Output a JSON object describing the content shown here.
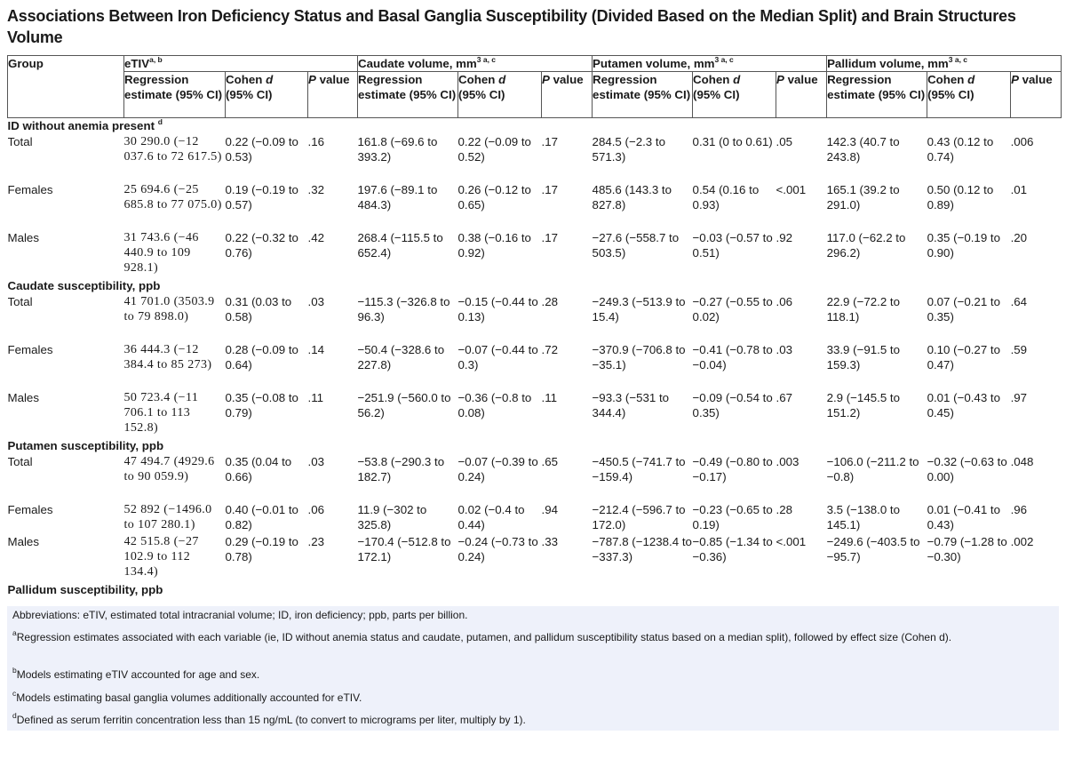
{
  "title": "Associations Between Iron Deficiency Status and Basal Ganglia Susceptibility (Divided Based on the Median Split) and Brain Structures Volume",
  "header": {
    "group": "Group",
    "etiv": "eTIV",
    "etiv_sup": "a, b",
    "caudate": "Caudate volume, mm",
    "putamen": "Putamen volume, mm",
    "pallidum": "Pallidum volume, mm",
    "vol_sup": "3 a, c",
    "regression": "Regression estimate (95% CI)",
    "cohen": "Cohen ",
    "cohen_d": "d",
    "cohen_ci": "(95% CI)",
    "p": "P",
    "p_value": " value"
  },
  "sections": [
    {
      "label": "ID without anemia present",
      "label_sup": "d",
      "rows": [
        {
          "group": "Total",
          "etiv_est": "30 290.0 (−12 037.6 to 72 617.5)",
          "etiv_d": "0.22 (−0.09 to 0.53)",
          "etiv_p": ".16",
          "caud_est": "161.8 (−69.6 to 393.2)",
          "caud_d": "0.22 (−0.09 to 0.52)",
          "caud_p": ".17",
          "put_est": "284.5 (−2.3 to 571.3)",
          "put_d": "0.31 (0 to 0.61)",
          "put_p": ".05",
          "pal_est": "142.3 (40.7 to 243.8)",
          "pal_d": "0.43 (0.12 to 0.74)",
          "pal_p": ".006"
        },
        {
          "group": "Females",
          "etiv_est": "25 694.6 (−25 685.8 to 77 075.0)",
          "etiv_d": "0.19 (−0.19 to 0.57)",
          "etiv_p": ".32",
          "caud_est": "197.6 (−89.1 to 484.3)",
          "caud_d": "0.26 (−0.12 to 0.65)",
          "caud_p": ".17",
          "put_est": "485.6 (143.3 to 827.8)",
          "put_d": "0.54 (0.16 to 0.93)",
          "put_p": "<.001",
          "pal_est": "165.1 (39.2 to 291.0)",
          "pal_d": "0.50 (0.12 to 0.89)",
          "pal_p": ".01"
        },
        {
          "group": "Males",
          "etiv_est": "31 743.6 (−46 440.9 to 109 928.1)",
          "etiv_d": "0.22 (−0.32 to 0.76)",
          "etiv_p": ".42",
          "caud_est": "268.4 (−115.5 to 652.4)",
          "caud_d": "0.38 (−0.16 to 0.92)",
          "caud_p": ".17",
          "put_est": "−27.6 (−558.7 to 503.5)",
          "put_d": "−0.03 (−0.57 to 0.51)",
          "put_p": ".92",
          "pal_est": "117.0 (−62.2 to 296.2)",
          "pal_d": "0.35 (−0.19 to 0.90)",
          "pal_p": ".20"
        }
      ]
    },
    {
      "label": "Caudate susceptibility, ppb",
      "rows": [
        {
          "group": "Total",
          "etiv_est": "41 701.0 (3503.9 to 79 898.0)",
          "etiv_d": "0.31 (0.03 to 0.58)",
          "etiv_p": ".03",
          "caud_est": "−115.3 (−326.8 to 96.3)",
          "caud_d": "−0.15 (−0.44 to 0.13)",
          "caud_p": ".28",
          "put_est": "−249.3 (−513.9 to 15.4)",
          "put_d": "−0.27 (−0.55 to 0.02)",
          "put_p": ".06",
          "pal_est": "22.9 (−72.2 to 118.1)",
          "pal_d": "0.07 (−0.21 to 0.35)",
          "pal_p": ".64"
        },
        {
          "group": "Females",
          "etiv_est": "36 444.3 (−12 384.4 to 85 273)",
          "etiv_d": "0.28 (−0.09 to 0.64)",
          "etiv_p": ".14",
          "caud_est": "−50.4 (−328.6 to 227.8)",
          "caud_d": "−0.07 (−0.44 to 0.3)",
          "caud_p": ".72",
          "put_est": "−370.9 (−706.8 to −35.1)",
          "put_d": "−0.41 (−0.78 to −0.04)",
          "put_p": ".03",
          "pal_est": "33.9 (−91.5 to 159.3)",
          "pal_d": "0.10 (−0.27 to 0.47)",
          "pal_p": ".59"
        },
        {
          "group": "Males",
          "etiv_est": "50 723.4 (−11 706.1 to 113 152.8)",
          "etiv_d": "0.35 (−0.08 to 0.79)",
          "etiv_p": ".11",
          "caud_est": "−251.9 (−560.0 to 56.2)",
          "caud_d": "−0.36 (−0.8 to 0.08)",
          "caud_p": ".11",
          "put_est": "−93.3 (−531 to 344.4)",
          "put_d": "−0.09 (−0.54 to 0.35)",
          "put_p": ".67",
          "pal_est": "2.9 (−145.5 to 151.2)",
          "pal_d": "0.01 (−0.43 to 0.45)",
          "pal_p": ".97"
        }
      ]
    },
    {
      "label": "Putamen susceptibility, ppb",
      "rows": [
        {
          "group": "Total",
          "etiv_est": "47 494.7 (4929.6 to 90 059.9)",
          "etiv_d": "0.35 (0.04 to 0.66)",
          "etiv_p": ".03",
          "caud_est": "−53.8 (−290.3 to 182.7)",
          "caud_d": "−0.07 (−0.39 to 0.24)",
          "caud_p": ".65",
          "put_est": "−450.5 (−741.7 to −159.4)",
          "put_d": "−0.49 (−0.80 to −0.17)",
          "put_p": ".003",
          "pal_est": "−106.0 (−211.2 to −0.8)",
          "pal_d": "−0.32 (−0.63 to 0.00)",
          "pal_p": ".048"
        },
        {
          "group": "Females",
          "etiv_est": "52 892 (−1496.0 to 107 280.1)",
          "etiv_d": "0.40 (−0.01 to 0.82)",
          "etiv_p": ".06",
          "caud_est": "11.9 (−302 to 325.8)",
          "caud_d": "0.02 (−0.4 to 0.44)",
          "caud_p": ".94",
          "put_est": "−212.4 (−596.7 to 172.0)",
          "put_d": "−0.23 (−0.65 to 0.19)",
          "put_p": ".28",
          "pal_est": "3.5 (−138.0 to 145.1)",
          "pal_d": "0.01 (−0.41 to 0.43)",
          "pal_p": ".96"
        },
        {
          "group": "Males",
          "etiv_est": "42 515.8 (−27 102.9 to 112 134.4)",
          "etiv_d": "0.29 (−0.19 to 0.78)",
          "etiv_p": ".23",
          "caud_est": "−170.4 (−512.8 to 172.1)",
          "caud_d": "−0.24 (−0.73 to 0.24)",
          "caud_p": ".33",
          "put_est": "−787.8 (−1238.4 to −337.3)",
          "put_d": "−0.85 (−1.34 to −0.36)",
          "put_p": "<.001",
          "pal_est": "−249.6 (−403.5 to −95.7)",
          "pal_d": "−0.79 (−1.28 to −0.30)",
          "pal_p": ".002"
        }
      ]
    },
    {
      "label": "Pallidum susceptibility, ppb",
      "rows": []
    }
  ],
  "footnotes": {
    "abbrev": "Abbreviations: eTIV, estimated total intracranial volume; ID, iron deficiency; ppb, parts per billion.",
    "a_mark": "a",
    "a_text": "Regression estimates associated with each variable (ie, ID without anemia status and caudate, putamen, and pallidum susceptibility status based on a median split), followed by effect size (Cohen d).",
    "b_mark": "b",
    "b_text": "Models estimating eTIV accounted for age and sex.",
    "c_mark": "c",
    "c_text": "Models estimating basal ganglia volumes additionally accounted for eTIV.",
    "d_mark": "d",
    "d_text": "Defined as serum ferritin concentration less than 15 ng/mL (to convert to micrograms per liter, multiply by 1)."
  }
}
